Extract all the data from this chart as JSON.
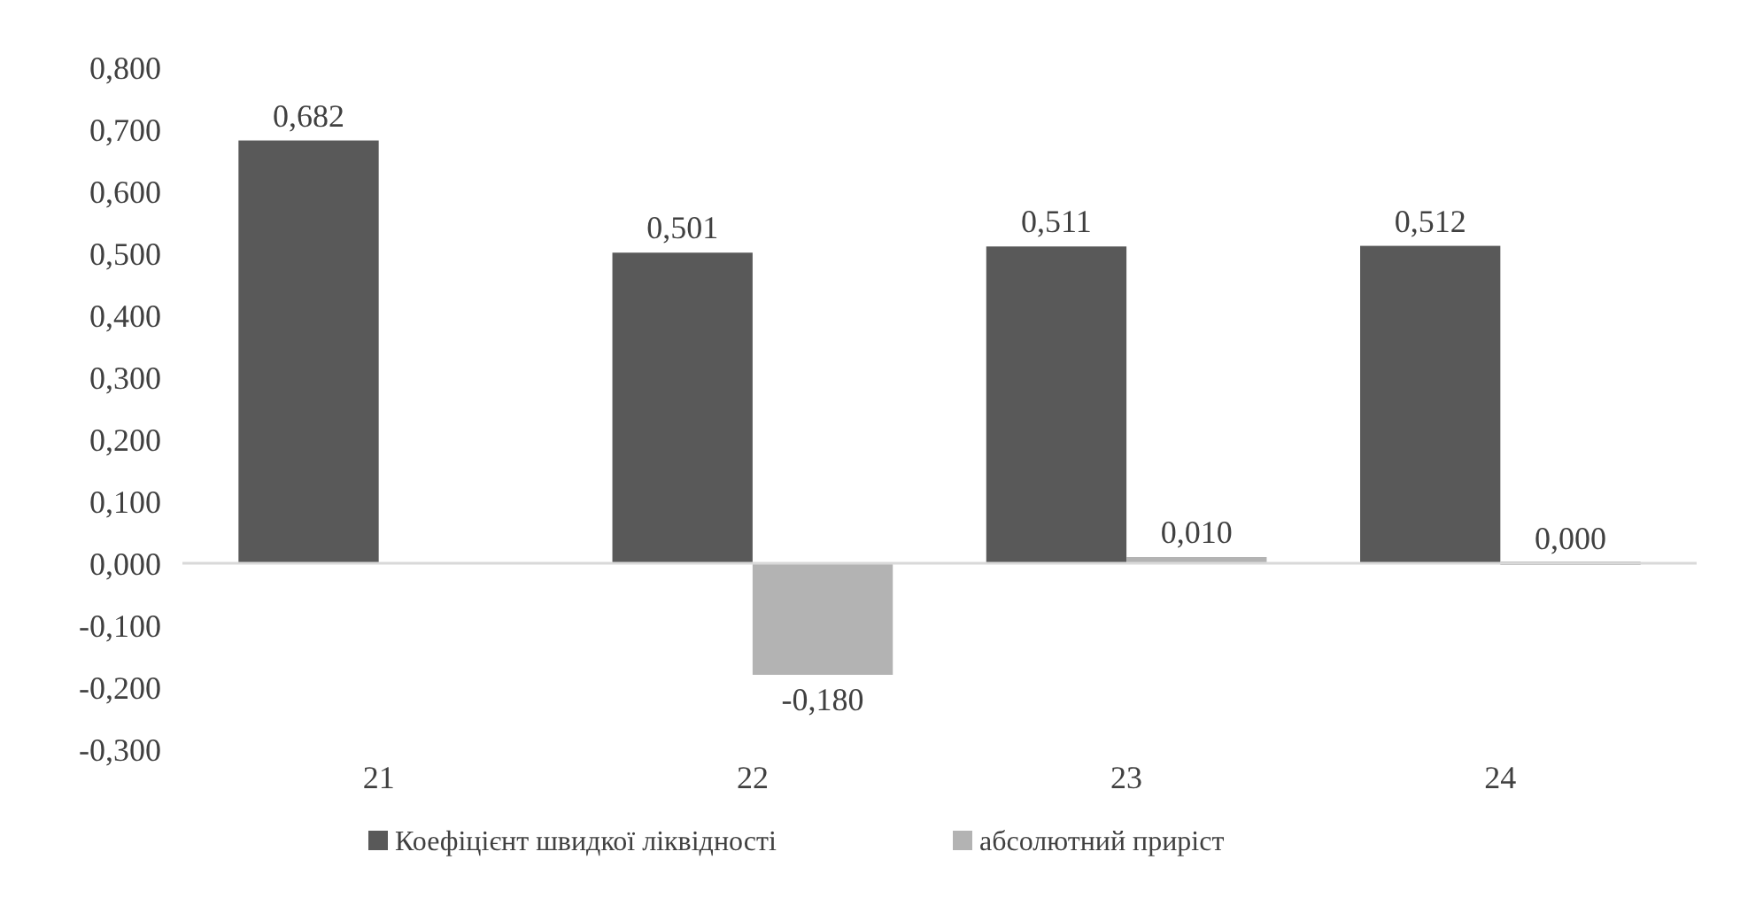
{
  "chart_data": {
    "type": "bar",
    "categories": [
      "21",
      "22",
      "23",
      "24"
    ],
    "series": [
      {
        "name": "Коефіцієнт швидкої ліквідності",
        "color": "#595959",
        "values": [
          0.682,
          0.501,
          0.511,
          0.512
        ],
        "value_labels": [
          "0,682",
          "0,501",
          "0,511",
          "0,512"
        ]
      },
      {
        "name": "абсолютний приріст",
        "color": "#b3b3b3",
        "values": [
          null,
          -0.18,
          0.01,
          0.0
        ],
        "value_labels": [
          null,
          "-0,180",
          "0,010",
          "0,000"
        ]
      }
    ],
    "ylim": [
      -0.3,
      0.8
    ],
    "yticks": [
      {
        "value": -0.3,
        "label": "-0,300"
      },
      {
        "value": -0.2,
        "label": "-0,200"
      },
      {
        "value": -0.1,
        "label": "-0,100"
      },
      {
        "value": 0,
        "label": "0,000"
      },
      {
        "value": 0.1,
        "label": "0,100"
      },
      {
        "value": 0.2,
        "label": "0,200"
      },
      {
        "value": 0.3,
        "label": "0,300"
      },
      {
        "value": 0.4,
        "label": "0,400"
      },
      {
        "value": 0.5,
        "label": "0,500"
      },
      {
        "value": 0.6,
        "label": "0,600"
      },
      {
        "value": 0.7,
        "label": "0,700"
      },
      {
        "value": 0.8,
        "label": "0,800"
      }
    ],
    "legend": "bottom"
  }
}
